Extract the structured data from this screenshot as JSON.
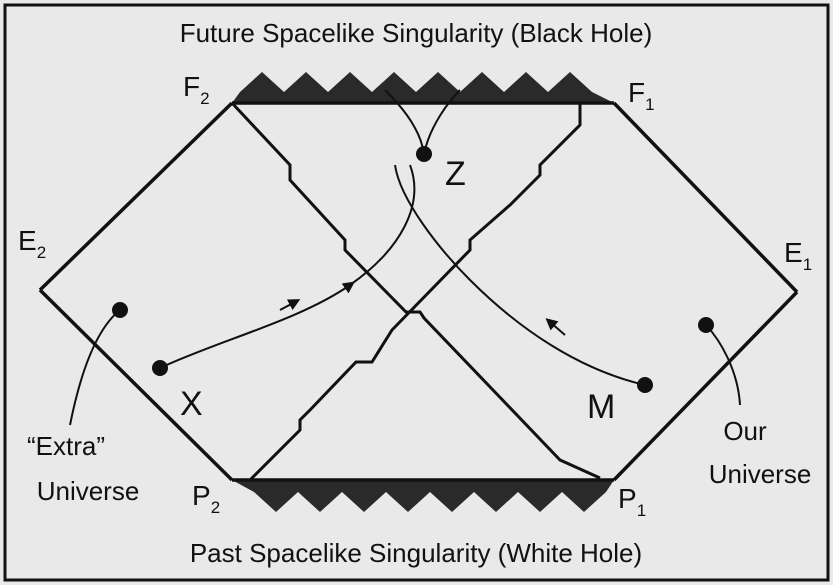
{
  "title_top": "Future Spacelike Singularity (Black Hole)",
  "title_bottom": "Past Spacelike Singularity (White Hole)",
  "corners": {
    "f2": {
      "base": "F",
      "sub": "2"
    },
    "f1": {
      "base": "F",
      "sub": "1"
    },
    "e2": {
      "base": "E",
      "sub": "2"
    },
    "e1": {
      "base": "E",
      "sub": "1"
    },
    "p2": {
      "base": "P",
      "sub": "2"
    },
    "p1": {
      "base": "P",
      "sub": "1"
    }
  },
  "points": {
    "z": "Z",
    "x": "X",
    "m": "M"
  },
  "universes": {
    "extra_line1": "“Extra”",
    "extra_line2": "Universe",
    "ours_line1": "Our",
    "ours_line2": "Universe"
  },
  "colors": {
    "background": "#e9e9e9",
    "ink": "#111111",
    "singularity": "#2a2a2a"
  }
}
